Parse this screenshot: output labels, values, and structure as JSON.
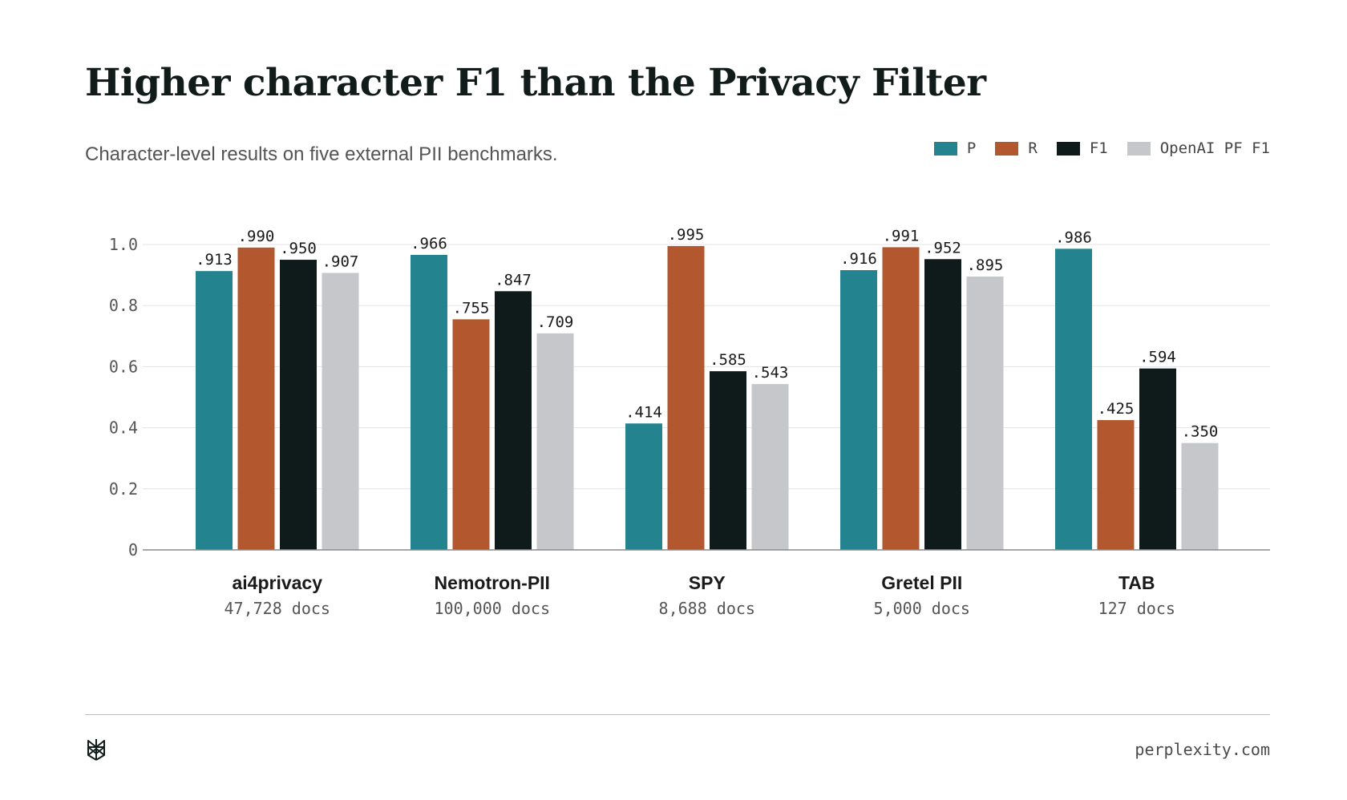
{
  "header": {
    "title": "Higher character F1 than the Privacy Filter",
    "subtitle": "Character-level results on five external PII benchmarks."
  },
  "legend": [
    {
      "label": "P",
      "color": "#23838f"
    },
    {
      "label": "R",
      "color": "#b3572f"
    },
    {
      "label": "F1",
      "color": "#0f1a1a"
    },
    {
      "label": "OpenAI PF F1",
      "color": "#c6c7ca"
    }
  ],
  "footer": {
    "site": "perplexity.com",
    "logo_icon": "perplexity-logo-icon"
  },
  "chart_data": {
    "type": "bar",
    "title": "Higher character F1 than the Privacy Filter",
    "subtitle": "Character-level results on five external PII benchmarks.",
    "categories": [
      "ai4privacy",
      "Nemotron-PII",
      "SPY",
      "Gretel PII",
      "TAB"
    ],
    "category_sublabels": [
      "47,728 docs",
      "100,000 docs",
      "8,688 docs",
      "5,000 docs",
      "127 docs"
    ],
    "series": [
      {
        "name": "P",
        "color": "#23838f",
        "values": [
          0.913,
          0.966,
          0.414,
          0.916,
          0.986
        ],
        "labels": [
          ".913",
          ".966",
          ".414",
          ".916",
          ".986"
        ]
      },
      {
        "name": "R",
        "color": "#b3572f",
        "values": [
          0.99,
          0.755,
          0.995,
          0.991,
          0.425
        ],
        "labels": [
          ".990",
          ".755",
          ".995",
          ".991",
          ".425"
        ]
      },
      {
        "name": "F1",
        "color": "#0f1a1a",
        "values": [
          0.95,
          0.847,
          0.585,
          0.952,
          0.594
        ],
        "labels": [
          ".950",
          ".847",
          ".585",
          ".952",
          ".594"
        ]
      },
      {
        "name": "OpenAI PF F1",
        "color": "#c6c7ca",
        "values": [
          0.907,
          0.709,
          0.543,
          0.895,
          0.35
        ],
        "labels": [
          ".907",
          ".709",
          ".543",
          ".895",
          ".350"
        ]
      }
    ],
    "yticks": [
      "0",
      "0.2",
      "0.4",
      "0.6",
      "0.8",
      "1.0"
    ],
    "ytick_values": [
      0,
      0.2,
      0.4,
      0.6,
      0.8,
      1.0
    ],
    "ylim": [
      0,
      1.0
    ],
    "grid": true,
    "legend_position": "top-right"
  }
}
